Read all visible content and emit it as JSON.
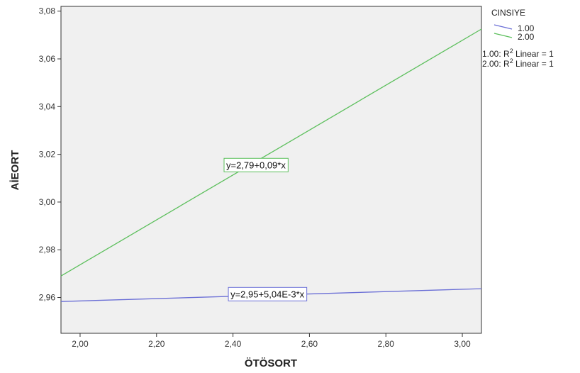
{
  "chart_data": {
    "type": "line",
    "xlabel": "ÖTÖSORT",
    "ylabel": "AİEORT",
    "xlim": [
      1.95,
      3.05
    ],
    "ylim": [
      2.945,
      3.082
    ],
    "x_ticks": [
      2.0,
      2.2,
      2.4,
      2.6,
      2.8,
      3.0
    ],
    "x_tick_labels": [
      "2,00",
      "2,20",
      "2,40",
      "2,60",
      "2,80",
      "3,00"
    ],
    "y_ticks": [
      2.96,
      2.98,
      3.0,
      3.02,
      3.04,
      3.06,
      3.08
    ],
    "y_tick_labels": [
      "2,96",
      "2,98",
      "3,00",
      "3,02",
      "3,04",
      "3,06",
      "3,08"
    ],
    "grid": false,
    "legend": {
      "title": "CINSIYE",
      "placement": "right",
      "fit_notes": [
        {
          "prefix": "1.00: R",
          "sup": "2",
          "suffix": " Linear = 1"
        },
        {
          "prefix": "2.00: R",
          "sup": "2",
          "suffix": " Linear = 1"
        }
      ]
    },
    "series": [
      {
        "name": "1.00",
        "color": "#6b6fd6",
        "x": [
          1.95,
          3.05
        ],
        "y": [
          2.9583,
          2.9637
        ],
        "equation": "y=2,95+5,04E-3*x",
        "equation_at": [
          2.49,
          2.9614
        ]
      },
      {
        "name": "2.00",
        "color": "#5cbf5c",
        "x": [
          1.95,
          3.05
        ],
        "y": [
          2.969,
          3.0725
        ],
        "equation": "y=2,79+0,09*x",
        "equation_at": [
          2.46,
          3.0155
        ]
      }
    ]
  }
}
